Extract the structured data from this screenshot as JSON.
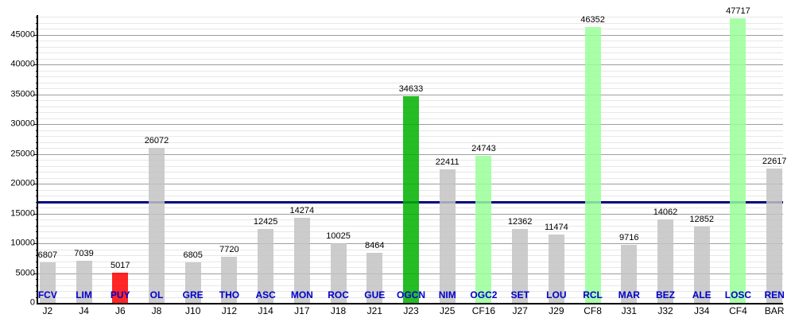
{
  "chart_data": {
    "type": "bar",
    "title": "",
    "xlabel": "",
    "ylabel": "",
    "ylim": [
      0,
      48300
    ],
    "yticks": [
      0,
      5000,
      10000,
      15000,
      20000,
      25000,
      30000,
      35000,
      40000,
      45000
    ],
    "minor_grid_step": 1000,
    "grid": true,
    "legend": "none",
    "palette": {
      "default": "#c3c3c3",
      "red": "#ff0000",
      "green": "#00b000",
      "lightgreen": "#99ff99"
    },
    "reference_line": {
      "value": 17000,
      "color": "#000080"
    },
    "categories": [
      "FCV",
      "LIM",
      "PUY",
      "OL",
      "GRE",
      "THO",
      "ASC",
      "MON",
      "ROC",
      "GUE",
      "OGCN",
      "NIM",
      "OGC2",
      "SET",
      "LOU",
      "RCL",
      "MAR",
      "BEZ",
      "ALE",
      "LOSC",
      "REN"
    ],
    "bars": [
      {
        "team": "FCV",
        "match": "J2",
        "value": 6807,
        "color": "default"
      },
      {
        "team": "LIM",
        "match": "J4",
        "value": 7039,
        "color": "default"
      },
      {
        "team": "PUY",
        "match": "J6",
        "value": 5017,
        "color": "red"
      },
      {
        "team": "OL",
        "match": "J8",
        "value": 26072,
        "color": "default"
      },
      {
        "team": "GRE",
        "match": "J10",
        "value": 6805,
        "color": "default"
      },
      {
        "team": "THO",
        "match": "J12",
        "value": 7720,
        "color": "default"
      },
      {
        "team": "ASC",
        "match": "J14",
        "value": 12425,
        "color": "default"
      },
      {
        "team": "MON",
        "match": "J17",
        "value": 14274,
        "color": "default"
      },
      {
        "team": "ROC",
        "match": "J18",
        "value": 10025,
        "color": "default"
      },
      {
        "team": "GUE",
        "match": "J21",
        "value": 8464,
        "color": "default"
      },
      {
        "team": "OGCN",
        "match": "J23",
        "value": 34633,
        "color": "green"
      },
      {
        "team": "NIM",
        "match": "J25",
        "value": 22411,
        "color": "default"
      },
      {
        "team": "OGC2",
        "match": "CF16",
        "value": 24743,
        "color": "lightgreen"
      },
      {
        "team": "SET",
        "match": "J27",
        "value": 12362,
        "color": "default"
      },
      {
        "team": "LOU",
        "match": "J29",
        "value": 11474,
        "color": "default"
      },
      {
        "team": "RCL",
        "match": "CF8",
        "value": 46352,
        "color": "lightgreen"
      },
      {
        "team": "MAR",
        "match": "J31",
        "value": 9716,
        "color": "default"
      },
      {
        "team": "BEZ",
        "match": "J32",
        "value": 14062,
        "color": "default"
      },
      {
        "team": "ALE",
        "match": "J34",
        "value": 12852,
        "color": "default"
      },
      {
        "team": "LOSC",
        "match": "CF4",
        "value": 47717,
        "color": "lightgreen"
      },
      {
        "team": "REN",
        "match": "BAR",
        "value": 22617,
        "color": "default"
      }
    ]
  }
}
